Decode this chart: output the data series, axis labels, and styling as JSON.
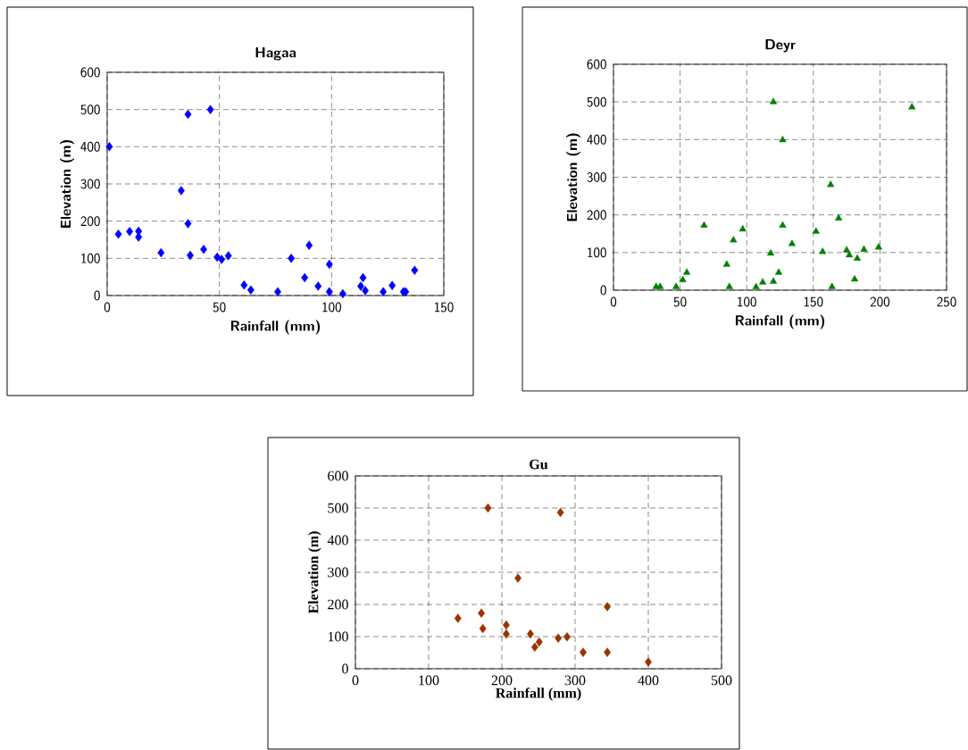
{
  "chart_data": [
    {
      "type": "scatter",
      "title": "Hagaa",
      "xlabel": "Rainfall (mm)",
      "ylabel": "Elevation (m)",
      "marker": "diamond",
      "grid": true,
      "xlim": [
        0,
        150
      ],
      "xticks": [
        0,
        50,
        100,
        150
      ],
      "ylim": [
        0,
        600
      ],
      "yticks": [
        0,
        100,
        200,
        300,
        400,
        500,
        600
      ],
      "series": [
        {
          "color": "#0000ff",
          "x": [
            1,
            5,
            10,
            14,
            14,
            24,
            33,
            36,
            36,
            37,
            43,
            46,
            49,
            51,
            54,
            61,
            64,
            76,
            82,
            88,
            90,
            94,
            99,
            99,
            105,
            113,
            114,
            115,
            123,
            127,
            132,
            133,
            137
          ],
          "values": [
            400,
            165,
            172,
            173,
            157,
            115,
            282,
            487,
            193,
            108,
            124,
            500,
            103,
            97,
            107,
            28,
            15,
            10,
            100,
            48,
            135,
            25,
            84,
            10,
            5,
            25,
            48,
            13,
            10,
            27,
            10,
            10,
            68
          ]
        }
      ]
    },
    {
      "type": "scatter",
      "title": "Deyr",
      "xlabel": "Rainfall (mm)",
      "ylabel": "Elevation (m)",
      "marker": "triangle",
      "grid": true,
      "xlim": [
        0,
        250
      ],
      "xticks": [
        0,
        50,
        100,
        150,
        200,
        250
      ],
      "ylim": [
        0,
        600
      ],
      "yticks": [
        0,
        100,
        200,
        300,
        400,
        500,
        600
      ],
      "series": [
        {
          "color": "#008000",
          "x": [
            32,
            35,
            47,
            52,
            55,
            68,
            85,
            87,
            90,
            97,
            107,
            112,
            118,
            120,
            120,
            124,
            127,
            127,
            134,
            152,
            157,
            163,
            164,
            169,
            175,
            177,
            181,
            183,
            188,
            199,
            224
          ],
          "values": [
            9,
            9,
            9,
            27,
            47,
            172,
            68,
            9,
            133,
            162,
            8,
            21,
            98,
            500,
            23,
            47,
            399,
            172,
            123,
            156,
            102,
            280,
            9,
            191,
            106,
            93,
            29,
            84,
            108,
            114,
            486
          ]
        }
      ]
    },
    {
      "type": "scatter",
      "title": "Gu",
      "xlabel": "Rainfall (mm)",
      "ylabel": "Elevation (m)",
      "marker": "diamond",
      "grid": true,
      "xlim": [
        0,
        500
      ],
      "xticks": [
        0,
        100,
        200,
        300,
        400,
        500
      ],
      "ylim": [
        0,
        600
      ],
      "yticks": [
        0,
        100,
        200,
        300,
        400,
        500,
        600
      ],
      "series": [
        {
          "color": "#993300",
          "x": [
            140,
            172,
            174,
            181,
            206,
            206,
            222,
            239,
            245,
            251,
            277,
            280,
            289,
            311,
            344,
            344,
            400
          ],
          "values": [
            157,
            173,
            125,
            500,
            136,
            108,
            282,
            108,
            67,
            83,
            95,
            486,
            99,
            51,
            193,
            51,
            21
          ]
        }
      ]
    }
  ]
}
